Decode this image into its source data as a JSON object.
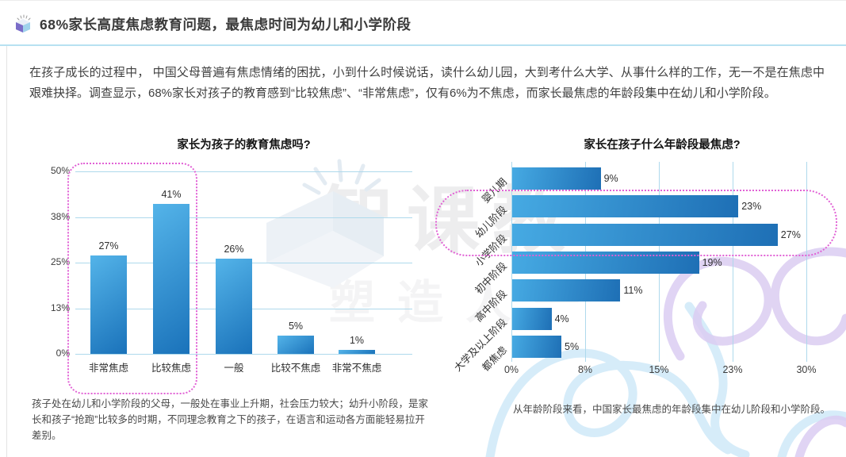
{
  "page": {
    "title": "68%家长高度焦虑教育问题，最焦虑时间为幼儿和小学阶段",
    "intro": "在孩子成长的过程中， 中国父母普遍有焦虑情绪的困扰，小到什么时候说话，读什么幼儿园，大到考什么大学、从事什么样的工作，无一不是在焦虑中艰难抉择。调查显示，68%家长对孩子的教育感到“比较焦虑”、“非常焦虑”，仅有6%为不焦虑，而家长最焦虑的年龄段集中在幼儿和小学阶段。"
  },
  "watermark": {
    "brand": "智课教",
    "slogan": "塑造人一"
  },
  "colors": {
    "bar_gradient_light": "#54b4e9",
    "bar_gradient_dark": "#1a72ba",
    "gridline": "#aed9ec",
    "highlight_dotted": "#e161d5",
    "header_underline": "#b7e1f1"
  },
  "chart_data": [
    {
      "type": "bar",
      "orientation": "vertical",
      "title": "家长为孩子的教育焦虑吗?",
      "categories": [
        "非常焦虑",
        "比较焦虑",
        "一般",
        "比较不焦虑",
        "非常不焦虑"
      ],
      "values": [
        27,
        41,
        26,
        5,
        1
      ],
      "value_labels": [
        "27%",
        "41%",
        "26%",
        "5%",
        "1%"
      ],
      "unit": "%",
      "ylim": [
        0,
        50
      ],
      "tick_values": [
        0,
        12.5,
        25,
        37.5,
        50
      ],
      "tick_labels": [
        "0%",
        "13%",
        "25%",
        "38%",
        "50%"
      ],
      "grid": "horizontal",
      "legend": "none",
      "highlighted_categories": [
        "非常焦虑",
        "比较焦虑"
      ],
      "caption": "孩子处在幼儿和小学阶段的父母，一般处在事业上升期，社会压力较大；幼升小阶段，是家长和孩子“抢跑”比较多的时期，不同理念教育之下的孩子，在语言和运动各方面能轻易拉开差别。"
    },
    {
      "type": "bar",
      "orientation": "horizontal",
      "title": "家长在孩子什么年龄段最焦虑?",
      "categories": [
        "婴儿期",
        "幼儿阶段",
        "小学阶段",
        "初中阶段",
        "高中阶段",
        "大学及以上阶段",
        "都焦虑"
      ],
      "values": [
        9,
        23,
        27,
        19,
        11,
        4,
        5
      ],
      "value_labels": [
        "9%",
        "23%",
        "27%",
        "19%",
        "11%",
        "4%",
        "5%"
      ],
      "unit": "%",
      "xlim": [
        0,
        30
      ],
      "tick_values": [
        0,
        7.5,
        15,
        22.5,
        30
      ],
      "tick_labels": [
        "0%",
        "8%",
        "15%",
        "23%",
        "30%"
      ],
      "grid": "vertical",
      "legend": "none",
      "highlighted_categories": [
        "幼儿阶段",
        "小学阶段"
      ],
      "caption": "从年龄阶段来看，中国家长最焦虑的年龄段集中在幼儿阶段和小学阶段。"
    }
  ]
}
